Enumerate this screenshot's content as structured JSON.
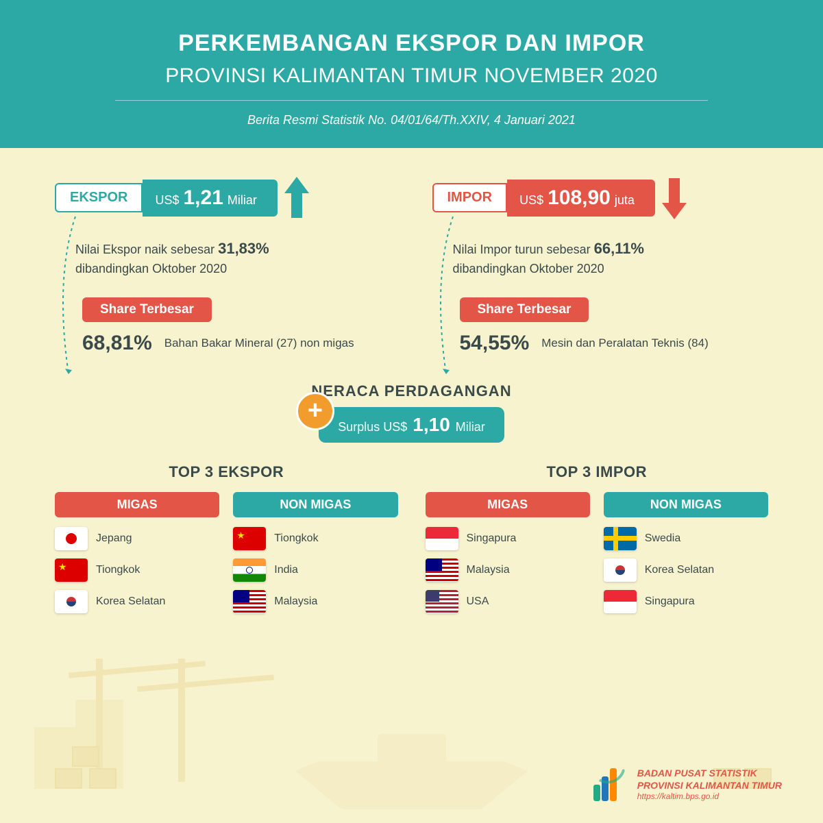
{
  "header": {
    "title_line1": "PERKEMBANGAN EKSPOR DAN IMPOR",
    "title_line2": "PROVINSI KALIMANTAN TIMUR NOVEMBER 2020",
    "subtitle": "Berita Resmi Statistik No. 04/01/64/Th.XXIV, 4 Januari 2021"
  },
  "colors": {
    "teal": "#2da9a5",
    "red": "#e35546",
    "orange": "#f39c2e",
    "bg": "#f8f3cf",
    "text": "#3a4a4a"
  },
  "ekspor": {
    "label": "EKSPOR",
    "currency": "US$",
    "value": "1,21",
    "unit": "Miliar",
    "direction": "up",
    "desc_pre": "Nilai Ekspor naik sebesar ",
    "pct": "31,83%",
    "desc_post": "dibandingkan Oktober 2020",
    "share_label": "Share Terbesar",
    "share_pct": "68,81%",
    "share_desc": "Bahan Bakar Mineral (27) non migas"
  },
  "impor": {
    "label": "IMPOR",
    "currency": "US$",
    "value": "108,90",
    "unit": "juta",
    "direction": "down",
    "desc_pre": "Nilai Impor turun sebesar ",
    "pct": "66,11%",
    "desc_post": "dibandingkan Oktober 2020",
    "share_label": "Share Terbesar",
    "share_pct": "54,55%",
    "share_desc": "Mesin dan Peralatan Teknis (84)"
  },
  "neraca": {
    "title": "NERACA PERDAGANGAN",
    "prefix": "Surplus US$",
    "value": "1,10",
    "unit": "Miliar",
    "badge": "+"
  },
  "tops": {
    "ekspor_title": "TOP 3 EKSPOR",
    "impor_title": "TOP 3 IMPOR",
    "migas_label": "MIGAS",
    "non_migas_label": "NON MIGAS",
    "ekspor_migas": [
      {
        "name": "Jepang",
        "flag": "jp"
      },
      {
        "name": "Tiongkok",
        "flag": "cn"
      },
      {
        "name": "Korea Selatan",
        "flag": "kr"
      }
    ],
    "ekspor_non": [
      {
        "name": "Tiongkok",
        "flag": "cn"
      },
      {
        "name": "India",
        "flag": "in"
      },
      {
        "name": "Malaysia",
        "flag": "my"
      }
    ],
    "impor_migas": [
      {
        "name": "Singapura",
        "flag": "sg"
      },
      {
        "name": "Malaysia",
        "flag": "my"
      },
      {
        "name": "USA",
        "flag": "us"
      }
    ],
    "impor_non": [
      {
        "name": "Swedia",
        "flag": "se"
      },
      {
        "name": "Korea Selatan",
        "flag": "kr"
      },
      {
        "name": "Singapura",
        "flag": "sg"
      }
    ]
  },
  "footer": {
    "org1": "BADAN PUSAT STATISTIK",
    "org2": "PROVINSI KALIMANTAN TIMUR",
    "url": "https://kaltim.bps.go.id"
  }
}
